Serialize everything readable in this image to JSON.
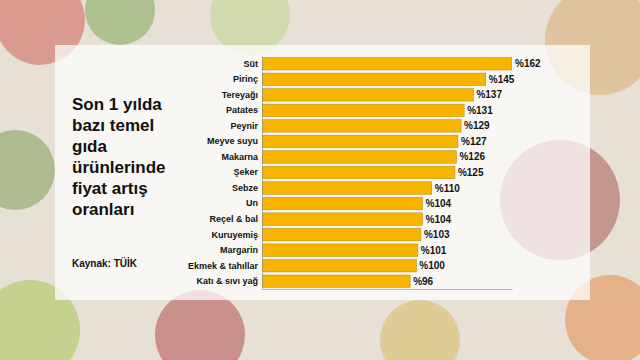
{
  "chart_data": {
    "type": "bar",
    "orientation": "horizontal",
    "title": "Son 1 yılda\nbazı temel\ngıda\nürünlerinde\nfiyat artış\noranları",
    "annotations": [
      "Kaynak: TÜİK"
    ],
    "categories": [
      "Süt",
      "Pirinç",
      "Tereyağı",
      "Patates",
      "Peynir",
      "Meyve suyu",
      "Makarna",
      "Şeker",
      "Sebze",
      "Un",
      "Reçel & bal",
      "Kuruyemiş",
      "Margarin",
      "Ekmek & tahıllar",
      "Katı & sıvı yağ"
    ],
    "values": [
      162,
      145,
      137,
      131,
      129,
      127,
      126,
      125,
      110,
      104,
      104,
      103,
      101,
      100,
      96
    ],
    "value_labels": [
      "%162",
      "%145",
      "%137",
      "%131",
      "%129",
      "%127",
      "%126",
      "%125",
      "%110",
      "%104",
      "%104",
      "%103",
      "%101",
      "%100",
      "%96"
    ],
    "color": "#f7b500",
    "xlim": [
      0,
      162
    ],
    "data_labels": true,
    "tick_labels": "y",
    "grid": false
  }
}
